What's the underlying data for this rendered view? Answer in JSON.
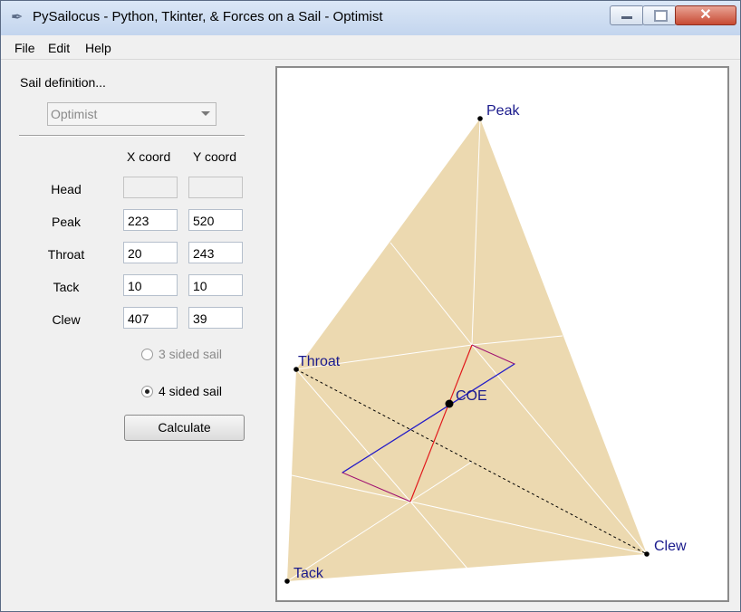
{
  "window": {
    "title": "PySailocus - Python, Tkinter, & Forces on a Sail - Optimist",
    "icon": "feather-icon"
  },
  "menu": [
    "File",
    "Edit",
    "Help"
  ],
  "panel": {
    "sail_definition_label": "Sail definition...",
    "sail_type_value": "Optimist",
    "col_x": "X coord",
    "col_y": "Y coord",
    "rows": [
      {
        "label": "Head",
        "x": "",
        "y": ""
      },
      {
        "label": "Peak",
        "x": "223",
        "y": "520"
      },
      {
        "label": "Throat",
        "x": "20",
        "y": "243"
      },
      {
        "label": "Tack",
        "x": "10",
        "y": "10"
      },
      {
        "label": "Clew",
        "x": "407",
        "y": "39"
      }
    ],
    "radio_3": "3 sided sail",
    "radio_4": "4 sided sail",
    "radio_selected": "4 sided sail",
    "calculate": "Calculate"
  },
  "canvas": {
    "labels": {
      "peak": "Peak",
      "throat": "Throat",
      "tack": "Tack",
      "clew": "Clew",
      "coe": "COE"
    },
    "colors": {
      "sail_fill": "#ecd9b0",
      "label_color": "#1a1a8c",
      "red_line": "#e01818",
      "blue_line": "#2020cc",
      "purple_line": "#a01070"
    }
  }
}
